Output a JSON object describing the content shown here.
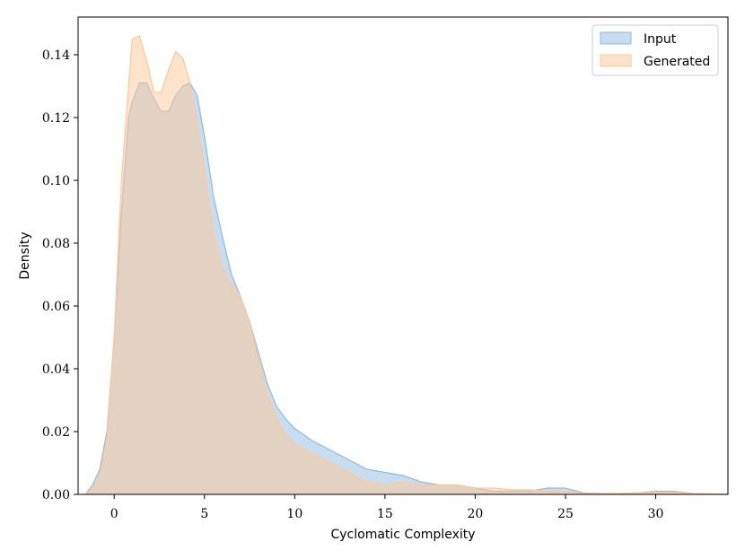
{
  "chart_data": {
    "type": "area",
    "xlabel": "Cyclomatic Complexity",
    "ylabel": "Density",
    "xlim": [
      -2,
      34
    ],
    "ylim": [
      0,
      0.152
    ],
    "x_ticks": [
      0,
      5,
      10,
      15,
      20,
      25,
      30
    ],
    "y_ticks": [
      0.0,
      0.02,
      0.04,
      0.06,
      0.08,
      0.1,
      0.12,
      0.14
    ],
    "y_tick_labels": [
      "0.00",
      "0.02",
      "0.04",
      "0.06",
      "0.08",
      "0.10",
      "0.12",
      "0.14"
    ],
    "grid": false,
    "legend_position": "top-right",
    "series": [
      {
        "name": "Input",
        "color": "#8fbbe0",
        "x": [
          -1.6,
          -1.2,
          -0.8,
          -0.4,
          0.0,
          0.4,
          0.8,
          1.0,
          1.4,
          1.8,
          2.2,
          2.6,
          3.0,
          3.4,
          3.8,
          4.2,
          4.6,
          5.0,
          5.5,
          6.0,
          6.5,
          7.0,
          7.5,
          8.0,
          8.5,
          9.0,
          9.5,
          10.0,
          11.0,
          12.0,
          13.0,
          14.0,
          15.0,
          16.0,
          17.0,
          18.0,
          19.0,
          20.0,
          21.0,
          22.0,
          23.0,
          24.0,
          25.0,
          26.0,
          27.0,
          28.0,
          29.0,
          30.0,
          31.0,
          32.0,
          33.0,
          34.0
        ],
        "y": [
          0.0,
          0.003,
          0.008,
          0.02,
          0.05,
          0.09,
          0.12,
          0.125,
          0.131,
          0.131,
          0.126,
          0.122,
          0.122,
          0.127,
          0.13,
          0.131,
          0.127,
          0.114,
          0.095,
          0.082,
          0.07,
          0.063,
          0.055,
          0.045,
          0.035,
          0.028,
          0.024,
          0.021,
          0.017,
          0.014,
          0.011,
          0.008,
          0.007,
          0.006,
          0.004,
          0.003,
          0.003,
          0.002,
          0.001,
          0.001,
          0.001,
          0.002,
          0.002,
          0.0005,
          0.0003,
          0.0003,
          0.0005,
          0.001,
          0.001,
          0.0003,
          0.0001,
          0.0
        ]
      },
      {
        "name": "Generated",
        "color": "#ffc796",
        "x": [
          -1.6,
          -1.2,
          -0.8,
          -0.4,
          0.0,
          0.4,
          0.8,
          1.0,
          1.4,
          1.8,
          2.2,
          2.6,
          3.0,
          3.4,
          3.8,
          4.2,
          4.6,
          5.0,
          5.5,
          6.0,
          6.5,
          7.0,
          7.5,
          8.0,
          8.5,
          9.0,
          9.5,
          10.0,
          11.0,
          12.0,
          13.0,
          14.0,
          15.0,
          16.0,
          17.0,
          18.0,
          19.0,
          20.0,
          21.0,
          22.0,
          23.0,
          24.0,
          25.0,
          26.0,
          27.0,
          28.0,
          29.0,
          30.0,
          31.0,
          32.0,
          33.0,
          34.0
        ],
        "y": [
          0.0,
          0.002,
          0.006,
          0.018,
          0.05,
          0.1,
          0.13,
          0.145,
          0.146,
          0.138,
          0.128,
          0.128,
          0.135,
          0.141,
          0.139,
          0.131,
          0.118,
          0.103,
          0.083,
          0.072,
          0.067,
          0.063,
          0.055,
          0.043,
          0.032,
          0.024,
          0.019,
          0.016,
          0.013,
          0.01,
          0.007,
          0.004,
          0.003,
          0.004,
          0.003,
          0.003,
          0.003,
          0.002,
          0.002,
          0.0015,
          0.0015,
          0.001,
          0.001,
          0.0003,
          0.0003,
          0.0003,
          0.0005,
          0.0007,
          0.0007,
          0.0003,
          0.0002,
          0.0
        ]
      }
    ]
  }
}
